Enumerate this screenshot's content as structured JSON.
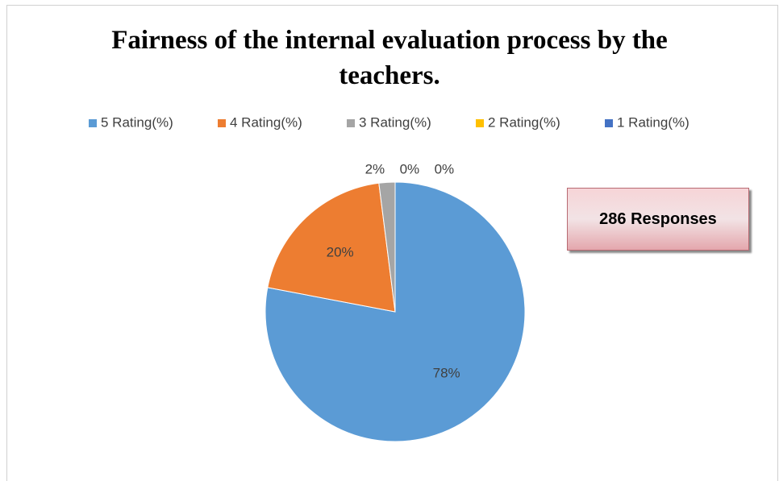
{
  "chart_data": {
    "type": "pie",
    "title": "Fairness of the internal evaluation process by the teachers.",
    "categories": [
      "5 Rating(%)",
      "4 Rating(%)",
      "3 Rating(%)",
      "2 Rating(%)",
      "1 Rating(%)"
    ],
    "values": [
      78,
      20,
      2,
      0,
      0
    ],
    "value_labels": [
      "78%",
      "20%",
      "2%",
      "0%",
      "0%"
    ],
    "colors": [
      "#5b9bd5",
      "#ed7d31",
      "#a5a5a5",
      "#ffc000",
      "#4472c4"
    ],
    "annotation": "286 Responses",
    "legend": "top"
  }
}
